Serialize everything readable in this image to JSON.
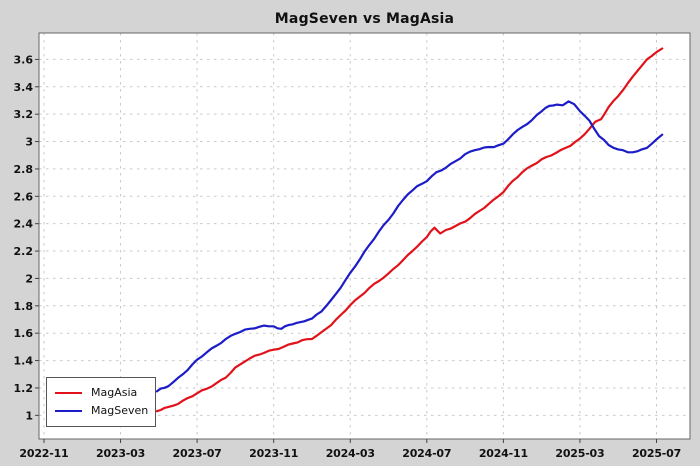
{
  "title": "MagSeven vs MagAsia",
  "legend": {
    "items": [
      {
        "label": "MagAsia",
        "color": "#e11219"
      },
      {
        "label": "MagSeven",
        "color": "#1c1cc8"
      }
    ]
  },
  "style": {
    "figure_background": "#d4d4d4",
    "plot_background": "#ffffff",
    "grid_color": "#c9c9c9",
    "spine_color": "#666666",
    "tick_color": "#444444",
    "label_color": "#111111"
  },
  "chart_data": {
    "type": "line",
    "title": "MagSeven vs MagAsia",
    "legend_position": "lower left",
    "grid": "dashed",
    "x_axis": {
      "unit": "months since 2022-11",
      "tick_positions_m": [
        0,
        4,
        8,
        12,
        16,
        20,
        24,
        28,
        32
      ],
      "tick_labels": [
        "2022-11",
        "2023-03",
        "2023-07",
        "2023-11",
        "2024-03",
        "2024-07",
        "2024-11",
        "2025-03",
        "2025-07"
      ],
      "range_m": [
        -0.26,
        33.75
      ]
    },
    "y_axis": {
      "tick_values": [
        1,
        1.2,
        1.4,
        1.6,
        1.8,
        2,
        2.2,
        2.4,
        2.6,
        2.8,
        3,
        3.2,
        3.4,
        3.6
      ],
      "tick_labels": [
        "1",
        "1.2",
        "1.4",
        "1.6",
        "1.8",
        "2",
        "2.2",
        "2.4",
        "2.6",
        "2.8",
        "3",
        "3.2",
        "3.4",
        "3.6"
      ],
      "range": [
        0.827,
        3.793
      ]
    },
    "series": [
      {
        "name": "MagAsia",
        "color": "#e11219",
        "points": [
          [
            5.9,
            1.03
          ],
          [
            6.5,
            1.06
          ],
          [
            7,
            1.09
          ],
          [
            7.5,
            1.125
          ],
          [
            8,
            1.16
          ],
          [
            8.5,
            1.19
          ],
          [
            9,
            1.23
          ],
          [
            9.5,
            1.28
          ],
          [
            10,
            1.35
          ],
          [
            10.5,
            1.4
          ],
          [
            11,
            1.43
          ],
          [
            11.5,
            1.455
          ],
          [
            12,
            1.475
          ],
          [
            12.5,
            1.5
          ],
          [
            13,
            1.53
          ],
          [
            13.5,
            1.55
          ],
          [
            14,
            1.56
          ],
          [
            14.5,
            1.6
          ],
          [
            15,
            1.66
          ],
          [
            15.5,
            1.73
          ],
          [
            16,
            1.81
          ],
          [
            16.5,
            1.87
          ],
          [
            17,
            1.93
          ],
          [
            17.5,
            1.98
          ],
          [
            18,
            2.03
          ],
          [
            18.5,
            2.1
          ],
          [
            19,
            2.17
          ],
          [
            19.5,
            2.24
          ],
          [
            20,
            2.3
          ],
          [
            20.4,
            2.37
          ],
          [
            20.7,
            2.33
          ],
          [
            21,
            2.35
          ],
          [
            21.5,
            2.38
          ],
          [
            22,
            2.42
          ],
          [
            22.5,
            2.47
          ],
          [
            23,
            2.52
          ],
          [
            23.5,
            2.57
          ],
          [
            24,
            2.63
          ],
          [
            24.5,
            2.71
          ],
          [
            25,
            2.78
          ],
          [
            25.5,
            2.83
          ],
          [
            26,
            2.87
          ],
          [
            26.5,
            2.9
          ],
          [
            27,
            2.93
          ],
          [
            27.5,
            2.97
          ],
          [
            28,
            3.02
          ],
          [
            28.5,
            3.1
          ],
          [
            28.8,
            3.15
          ],
          [
            29.1,
            3.16
          ],
          [
            29.5,
            3.25
          ],
          [
            30,
            3.33
          ],
          [
            30.5,
            3.42
          ],
          [
            31,
            3.52
          ],
          [
            31.5,
            3.6
          ],
          [
            32,
            3.66
          ],
          [
            32.3,
            3.68
          ]
        ]
      },
      {
        "name": "MagSeven",
        "color": "#1c1cc8",
        "points": [
          [
            5.9,
            1.175
          ],
          [
            6.5,
            1.22
          ],
          [
            7,
            1.27
          ],
          [
            7.5,
            1.33
          ],
          [
            8,
            1.4
          ],
          [
            8.5,
            1.46
          ],
          [
            9,
            1.51
          ],
          [
            9.5,
            1.56
          ],
          [
            10,
            1.6
          ],
          [
            10.5,
            1.62
          ],
          [
            11,
            1.635
          ],
          [
            11.5,
            1.65
          ],
          [
            12,
            1.655
          ],
          [
            12.4,
            1.63
          ],
          [
            12.8,
            1.66
          ],
          [
            13.2,
            1.675
          ],
          [
            13.6,
            1.69
          ],
          [
            14,
            1.7
          ],
          [
            14.5,
            1.76
          ],
          [
            15,
            1.84
          ],
          [
            15.5,
            1.94
          ],
          [
            16,
            2.04
          ],
          [
            16.5,
            2.14
          ],
          [
            17,
            2.24
          ],
          [
            17.5,
            2.34
          ],
          [
            18,
            2.43
          ],
          [
            18.5,
            2.53
          ],
          [
            19,
            2.62
          ],
          [
            19.5,
            2.67
          ],
          [
            20,
            2.71
          ],
          [
            20.5,
            2.77
          ],
          [
            21,
            2.81
          ],
          [
            21.5,
            2.86
          ],
          [
            22,
            2.91
          ],
          [
            22.5,
            2.94
          ],
          [
            23,
            2.95
          ],
          [
            23.5,
            2.96
          ],
          [
            24,
            2.98
          ],
          [
            24.5,
            3.06
          ],
          [
            25,
            3.11
          ],
          [
            25.5,
            3.16
          ],
          [
            26,
            3.22
          ],
          [
            26.4,
            3.26
          ],
          [
            26.8,
            3.27
          ],
          [
            27.1,
            3.265
          ],
          [
            27.4,
            3.29
          ],
          [
            27.7,
            3.275
          ],
          [
            28,
            3.23
          ],
          [
            28.5,
            3.15
          ],
          [
            29,
            3.04
          ],
          [
            29.5,
            2.97
          ],
          [
            30,
            2.94
          ],
          [
            30.5,
            2.925
          ],
          [
            31,
            2.93
          ],
          [
            31.5,
            2.96
          ],
          [
            32,
            3.01
          ],
          [
            32.3,
            3.05
          ]
        ]
      }
    ]
  }
}
